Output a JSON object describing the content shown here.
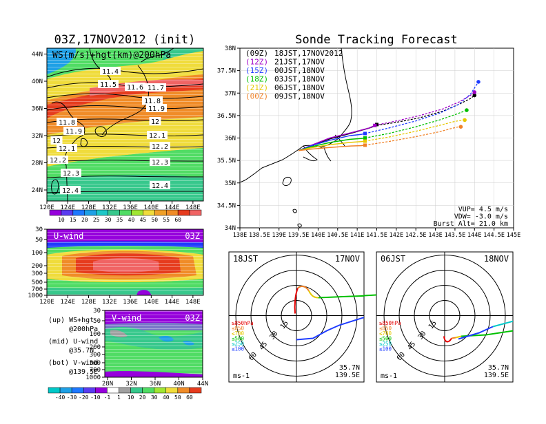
{
  "left_title": "03Z,17NOV2012 (init)",
  "right_title": "Sonde Tracking Forecast",
  "map_panel": {
    "label": "WS(m/s)+hgt(km)@200hPa",
    "x_ticks": [
      "120E",
      "124E",
      "128E",
      "132E",
      "136E",
      "140E",
      "144E",
      "148E"
    ],
    "y_ticks": [
      "24N",
      "28N",
      "32N",
      "36N",
      "40N",
      "44N"
    ],
    "contour_labels": [
      "11.4",
      "11.5",
      "11.6",
      "11.7",
      "11.8",
      "11.9",
      "11.8",
      "11.9",
      "12",
      "12",
      "12.1",
      "12.1",
      "12.2",
      "12.2",
      "12.3",
      "12.3",
      "12.4",
      "12.4"
    ],
    "colorbar_ticks": [
      "10",
      "15",
      "20",
      "25",
      "30",
      "35",
      "40",
      "45",
      "50",
      "55",
      "60"
    ]
  },
  "u_panel": {
    "label": "U-wind",
    "time": "03Z",
    "y_ticks": [
      "30",
      "50",
      "100",
      "200",
      "300",
      "500",
      "700",
      "1000"
    ],
    "x_ticks": [
      "120E",
      "124E",
      "128E",
      "132E",
      "136E",
      "140E",
      "144E",
      "148E"
    ]
  },
  "v_panel": {
    "label": "V-wind",
    "time": "03Z",
    "y_ticks": [
      "30",
      "50",
      "100",
      "200",
      "300",
      "500",
      "700",
      "1000"
    ],
    "x_ticks": [
      "28N",
      "32N",
      "36N",
      "40N",
      "44N"
    ]
  },
  "legend_notes": [
    {
      "key": "(up)",
      "text": "WS+hgt",
      "sub": "@200hPa"
    },
    {
      "key": "(mid)",
      "text": "U-wind",
      "sub": "@35.7N"
    },
    {
      "key": "(bot)",
      "text": "V-wind",
      "sub": "@139.5E"
    }
  ],
  "bottom_colorbar_ticks": [
    "-40",
    "-30",
    "-20",
    "-10",
    "-1",
    "1",
    "10",
    "20",
    "30",
    "40",
    "50",
    "60"
  ],
  "track_panel": {
    "x_ticks": [
      "138E",
      "138.5E",
      "139E",
      "139.5E",
      "140E",
      "140.5E",
      "141E",
      "141.5E",
      "142E",
      "142.5E",
      "143E",
      "143.5E",
      "144E",
      "144.5E",
      "145E"
    ],
    "y_ticks": [
      "34N",
      "34.5N",
      "35N",
      "35.5N",
      "36N",
      "36.5N",
      "37N",
      "37.5N",
      "38N"
    ],
    "legend": [
      {
        "code": "(09Z)",
        "time": "18JST,17NOV2012",
        "color": "#000000"
      },
      {
        "code": "(12Z)",
        "time": "21JST,17NOV",
        "color": "#a000c8"
      },
      {
        "code": "(15Z)",
        "time": "00JST,18NOV",
        "color": "#1e3cff"
      },
      {
        "code": "(18Z)",
        "time": "03JST,18NOV",
        "color": "#00c000"
      },
      {
        "code": "(21Z)",
        "time": "06JST,18NOV",
        "color": "#e6c800"
      },
      {
        "code": "(00Z)",
        "time": "09JST,18NOV",
        "color": "#f08228"
      }
    ],
    "info": [
      "VUP= 4.5 m/s",
      "VDW= -3.0 m/s",
      "Burst Alt= 21.0 km"
    ]
  },
  "polar_left": {
    "time_label": "18JST",
    "date_label": "17NOV",
    "lat": "35.7N",
    "lon": "139.5E",
    "unit": "ms-1"
  },
  "polar_right": {
    "time_label": "06JST",
    "date_label": "18NOV",
    "lat": "35.7N",
    "lon": "139.5E",
    "unit": "ms-1"
  },
  "polar_rings": [
    "15",
    "30",
    "45",
    "60"
  ],
  "polar_levels": [
    {
      "label": "≥850hPa",
      "color": "#e60000"
    },
    {
      "label": "≤850",
      "color": "#f08228"
    },
    {
      "label": "≤700",
      "color": "#e6c800"
    },
    {
      "label": "≤500",
      "color": "#00c000"
    },
    {
      "label": "≤250",
      "color": "#00c8c8"
    },
    {
      "label": "≤100",
      "color": "#1e3cff"
    }
  ],
  "chart_data": {
    "type": "line",
    "title": "Sonde Tracking Forecast",
    "xlim": [
      138,
      145
    ],
    "ylim": [
      34,
      38
    ],
    "series": [
      {
        "name": "(09Z) 18JST,17NOV2012",
        "color": "#000000",
        "burst": [
          141.5,
          36.3
        ],
        "x": [
          139.5,
          139.8,
          140.3,
          140.9,
          141.3,
          141.5,
          142,
          142.6,
          143.2,
          143.6,
          143.9,
          144.0
        ],
        "y": [
          35.72,
          35.82,
          35.98,
          36.12,
          36.22,
          36.28,
          36.35,
          36.45,
          36.6,
          36.75,
          36.88,
          36.95
        ]
      },
      {
        "name": "(12Z) 21JST,17NOV",
        "color": "#a000c8",
        "burst": [
          141.45,
          36.28
        ],
        "x": [
          139.5,
          139.8,
          140.3,
          140.9,
          141.3,
          141.45,
          142,
          142.6,
          143.2,
          143.6,
          143.9,
          144.0
        ],
        "y": [
          35.72,
          35.83,
          36.0,
          36.13,
          36.22,
          36.28,
          36.38,
          36.5,
          36.65,
          36.8,
          36.95,
          37.02
        ]
      },
      {
        "name": "(15Z) 00JST,18NOV",
        "color": "#1e3cff",
        "burst": [
          141.2,
          36.1
        ],
        "x": [
          139.5,
          139.8,
          140.3,
          140.8,
          141.1,
          141.2,
          141.8,
          142.5,
          143.1,
          143.6,
          143.9,
          144.1
        ],
        "y": [
          35.72,
          35.82,
          35.95,
          36.05,
          36.08,
          36.1,
          36.22,
          36.38,
          36.55,
          36.75,
          36.98,
          37.25
        ]
      },
      {
        "name": "(18Z) 03JST,18NOV",
        "color": "#00c000",
        "burst": [
          141.2,
          36.0
        ],
        "x": [
          139.5,
          139.8,
          140.3,
          140.8,
          141.1,
          141.2,
          141.8,
          142.5,
          143.1,
          143.5,
          143.75,
          143.8
        ],
        "y": [
          35.72,
          35.8,
          35.9,
          35.97,
          35.99,
          36.0,
          36.1,
          36.25,
          36.4,
          36.52,
          36.6,
          36.62
        ]
      },
      {
        "name": "(21Z) 06JST,18NOV",
        "color": "#e6c800",
        "burst": [
          141.2,
          35.93
        ],
        "x": [
          139.5,
          139.8,
          140.3,
          140.8,
          141.1,
          141.2,
          141.8,
          142.5,
          143.1,
          143.5,
          143.7,
          143.75
        ],
        "y": [
          35.72,
          35.78,
          35.85,
          35.9,
          35.92,
          35.93,
          36.02,
          36.15,
          36.28,
          36.37,
          36.4,
          36.4
        ]
      },
      {
        "name": "(00Z) 09JST,18NOV",
        "color": "#f08228",
        "burst": [
          141.2,
          35.84
        ],
        "x": [
          139.5,
          139.8,
          140.3,
          140.8,
          141.1,
          141.2,
          141.8,
          142.5,
          143.1,
          143.45,
          143.6,
          143.65
        ],
        "y": [
          35.72,
          35.75,
          35.79,
          35.82,
          35.83,
          35.84,
          35.92,
          36.03,
          36.14,
          36.22,
          36.25,
          36.25
        ]
      }
    ]
  }
}
